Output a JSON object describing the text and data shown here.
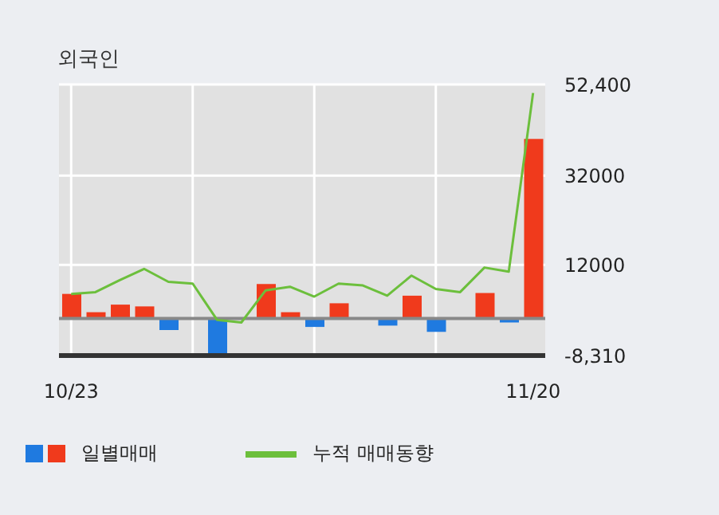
{
  "chart_data": {
    "type": "bar",
    "title": "외국인",
    "categories": [
      "10/23",
      null,
      null,
      null,
      null,
      null,
      null,
      null,
      null,
      null,
      null,
      null,
      null,
      null,
      null,
      null,
      null,
      null,
      null,
      "11/20"
    ],
    "series": [
      {
        "name": "일별매매",
        "values": [
          5500,
          1400,
          3100,
          2700,
          -2600,
          null,
          -8000,
          null,
          7700,
          1400,
          -1900,
          3400,
          null,
          -1600,
          5100,
          -3000,
          null,
          5700,
          -900,
          40200
        ],
        "colors": [
          "#f03a1c",
          "#f03a1c",
          "#f03a1c",
          "#f03a1c",
          "#1f7ae0",
          "#f03a1c",
          "#1f7ae0",
          "#1f7ae0",
          "#f03a1c",
          "#f03a1c",
          "#1f7ae0",
          "#f03a1c",
          "#f03a1c",
          "#1f7ae0",
          "#f03a1c",
          "#1f7ae0",
          "#f03a1c",
          "#f03a1c",
          "#1f7ae0",
          "#f03a1c"
        ]
      },
      {
        "type": "line",
        "name": "누적 매매동향",
        "color": "#6cbf3c",
        "values": [
          5500,
          5900,
          8600,
          11100,
          8200,
          7800,
          -300,
          -900,
          6300,
          7100,
          4900,
          7800,
          7400,
          5100,
          9600,
          6600,
          5900,
          11400,
          10500,
          50500
        ]
      }
    ],
    "ylim": [
      -8310,
      52400
    ],
    "yticks": [
      {
        "value": 52400,
        "label": "52,400"
      },
      32000,
      12000,
      {
        "value": -8310,
        "label": "-8,310"
      }
    ],
    "ref_lines": [
      {
        "axis": "y",
        "value": 0,
        "color": "#888888"
      }
    ],
    "grid": true,
    "legend": "bottom"
  }
}
